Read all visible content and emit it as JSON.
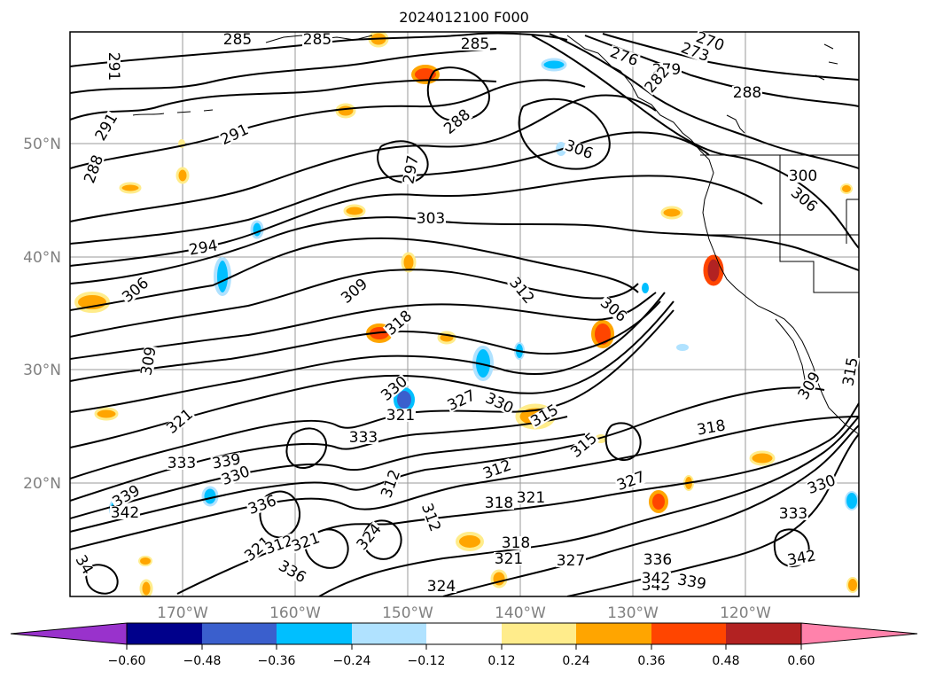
{
  "title": "2024012100 F000",
  "map": {
    "lon_labels": [
      "170°W",
      "160°W",
      "150°W",
      "140°W",
      "130°W",
      "120°W"
    ],
    "lat_labels": [
      "50°N",
      "40°N",
      "30°N",
      "20°N"
    ],
    "contour_labels": [
      "285",
      "285",
      "285",
      "270",
      "273",
      "279",
      "276",
      "282",
      "288",
      "291",
      "291",
      "291",
      "288",
      "288",
      "306",
      "297",
      "303",
      "294",
      "306",
      "309",
      "312",
      "306",
      "300",
      "306",
      "309",
      "318",
      "330",
      "327",
      "330",
      "321",
      "321",
      "315",
      "315",
      "318",
      "333",
      "339",
      "333",
      "330",
      "336",
      "339",
      "342",
      "312",
      "312",
      "321",
      "318",
      "321",
      "312",
      "327",
      "330",
      "333",
      "312",
      "321",
      "324",
      "336",
      "324",
      "321",
      "327",
      "336",
      "342",
      "345",
      "339",
      "342",
      "34",
      "318",
      "309",
      "315"
    ]
  },
  "colorbar": {
    "ticks": [
      "−0.60",
      "−0.48",
      "−0.36",
      "−0.24",
      "−0.12",
      "0.12",
      "0.24",
      "0.36",
      "0.48",
      "0.60"
    ],
    "colors": [
      "#9932cc",
      "#00008b",
      "#3a5fcd",
      "#00bfff",
      "#b0e2ff",
      "#ffffff",
      "#ffec8b",
      "#ffa500",
      "#ff4500",
      "#b22222",
      "#ff82ab"
    ]
  }
}
